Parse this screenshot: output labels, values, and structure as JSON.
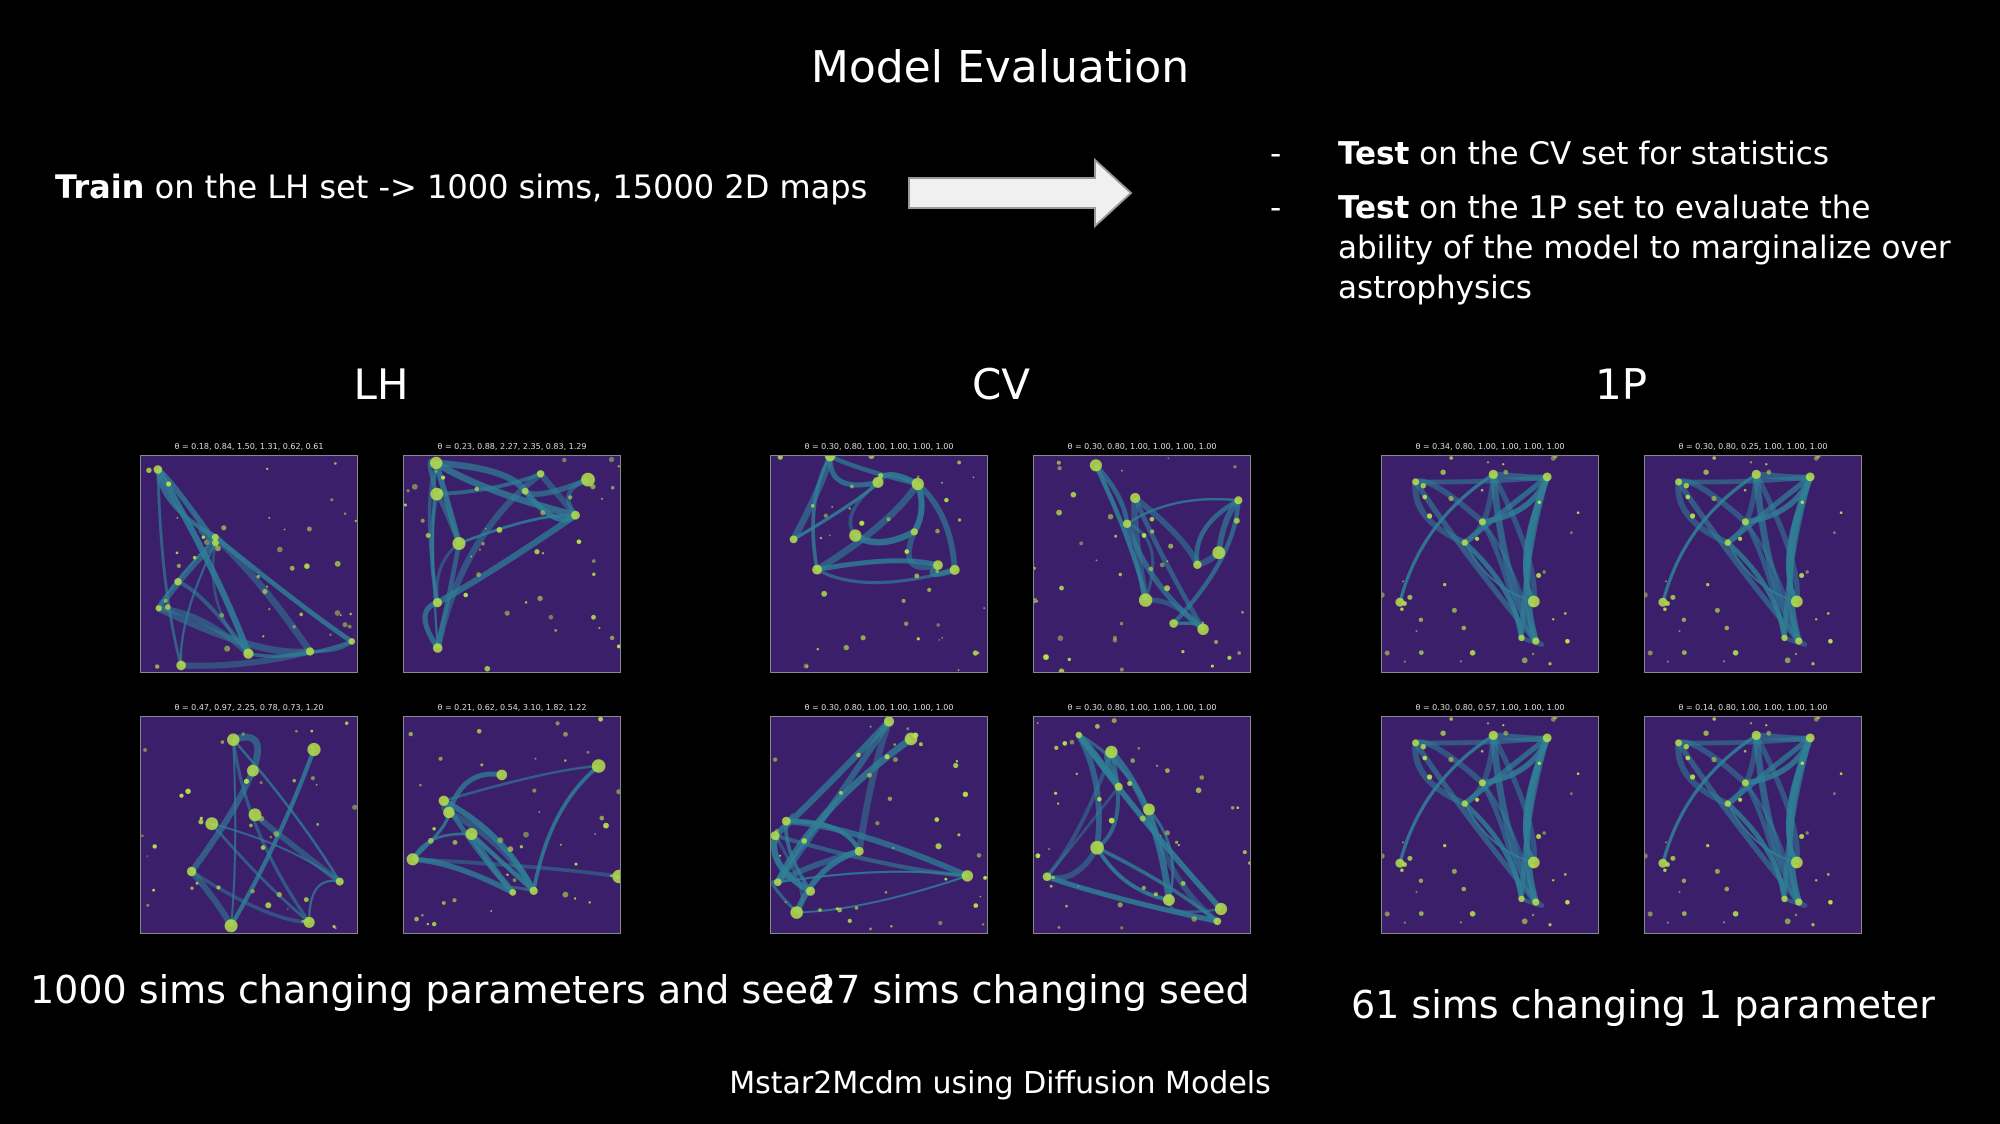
{
  "slide": {
    "title": "Model Evaluation",
    "train_text": {
      "bold": "Train",
      "rest": " on the LH set -> 1000 sims, 15000 2D maps"
    },
    "bullets": [
      {
        "dash": "-",
        "bold": "Test",
        "rest": " on the CV set for statistics"
      },
      {
        "dash": "-",
        "bold": "Test",
        "rest": " on the 1P set to evaluate the ability of the model to marginalize over astrophysics"
      }
    ],
    "footer": "Mstar2Mcdm using Diffusion Models"
  },
  "groups": [
    {
      "label": "LH",
      "caption": "1000 sims changing parameters and seed",
      "panels": [
        {
          "title": "θ = 0.18, 0.84, 1.50, 1.31, 0.62, 0.61"
        },
        {
          "title": "θ = 0.23, 0.88, 2.27, 2.35, 0.83, 1.29"
        },
        {
          "title": "θ = 0.47, 0.97, 2.25, 0.78, 0.73, 1.20"
        },
        {
          "title": "θ = 0.21, 0.62, 0.54, 3.10, 1.82, 1.22"
        }
      ]
    },
    {
      "label": "CV",
      "caption": "27 sims changing seed",
      "panels": [
        {
          "title": "θ = 0.30, 0.80, 1.00, 1.00, 1.00, 1.00"
        },
        {
          "title": "θ = 0.30, 0.80, 1.00, 1.00, 1.00, 1.00"
        },
        {
          "title": "θ = 0.30, 0.80, 1.00, 1.00, 1.00, 1.00"
        },
        {
          "title": "θ = 0.30, 0.80, 1.00, 1.00, 1.00, 1.00"
        }
      ]
    },
    {
      "label": "1P",
      "caption": "61 sims changing 1 parameter",
      "panels": [
        {
          "title": "θ = 0.34, 0.80, 1.00, 1.00, 1.00, 1.00"
        },
        {
          "title": "θ = 0.30, 0.80, 0.25, 1.00, 1.00, 1.00"
        },
        {
          "title": "θ = 0.30, 0.80, 0.57, 1.00, 1.00, 1.00"
        },
        {
          "title": "θ = 0.14, 0.80, 1.00, 1.00, 1.00, 1.00"
        }
      ]
    }
  ],
  "colors": {
    "background": "#000000",
    "text": "#ffffff",
    "map_low": "#3b1f6b",
    "map_mid": "#2f7f96",
    "map_high": "#b7e04a"
  }
}
